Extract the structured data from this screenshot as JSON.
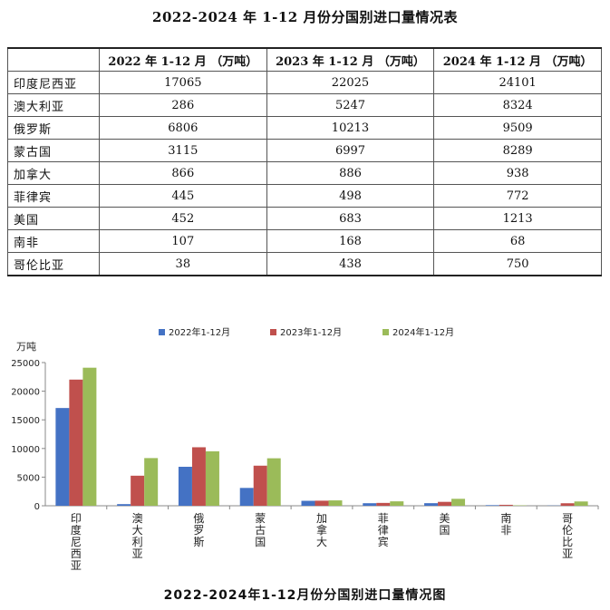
{
  "table": {
    "title": "2022-2024 年 1-12 月份分国别进口量情况表",
    "headers": [
      "",
      "2022 年 1-12 月 （万吨）",
      "2023 年 1-12 月 （万吨）",
      "2024 年 1-12 月 （万吨）"
    ],
    "rows": [
      [
        "印度尼西亚",
        "17065",
        "22025",
        "24101"
      ],
      [
        "澳大利亚",
        "286",
        "5247",
        "8324"
      ],
      [
        "俄罗斯",
        "6806",
        "10213",
        "9509"
      ],
      [
        "蒙古国",
        "3115",
        "6997",
        "8289"
      ],
      [
        "加拿大",
        "866",
        "886",
        "938"
      ],
      [
        "菲律宾",
        "445",
        "498",
        "772"
      ],
      [
        "美国",
        "452",
        "683",
        "1213"
      ],
      [
        "南非",
        "107",
        "168",
        "68"
      ],
      [
        "哥伦比亚",
        "38",
        "438",
        "750"
      ]
    ]
  },
  "chart_data": {
    "type": "bar",
    "title": "2022-2024年1-12月份分国别进口量情况图",
    "ylabel": "万吨",
    "xlabel": "",
    "ylim": [
      0,
      25000
    ],
    "yticks": [
      0,
      5000,
      10000,
      15000,
      20000,
      25000
    ],
    "grid": false,
    "legend": "top",
    "categories": [
      "印度尼西亚",
      "澳大利亚",
      "俄罗斯",
      "蒙古国",
      "加拿大",
      "菲律宾",
      "美国",
      "南非",
      "哥伦比亚"
    ],
    "series": [
      {
        "name": "2022年1-12月",
        "color": "#4472c4",
        "values": [
          17065,
          286,
          6806,
          3115,
          866,
          445,
          452,
          107,
          38
        ]
      },
      {
        "name": "2023年1-12月",
        "color": "#c0504d",
        "values": [
          22025,
          5247,
          10213,
          6997,
          886,
          498,
          683,
          168,
          438
        ]
      },
      {
        "name": "2024年1-12月",
        "color": "#9bbb59",
        "values": [
          24101,
          8324,
          9509,
          8289,
          938,
          772,
          1213,
          68,
          750
        ]
      }
    ]
  }
}
